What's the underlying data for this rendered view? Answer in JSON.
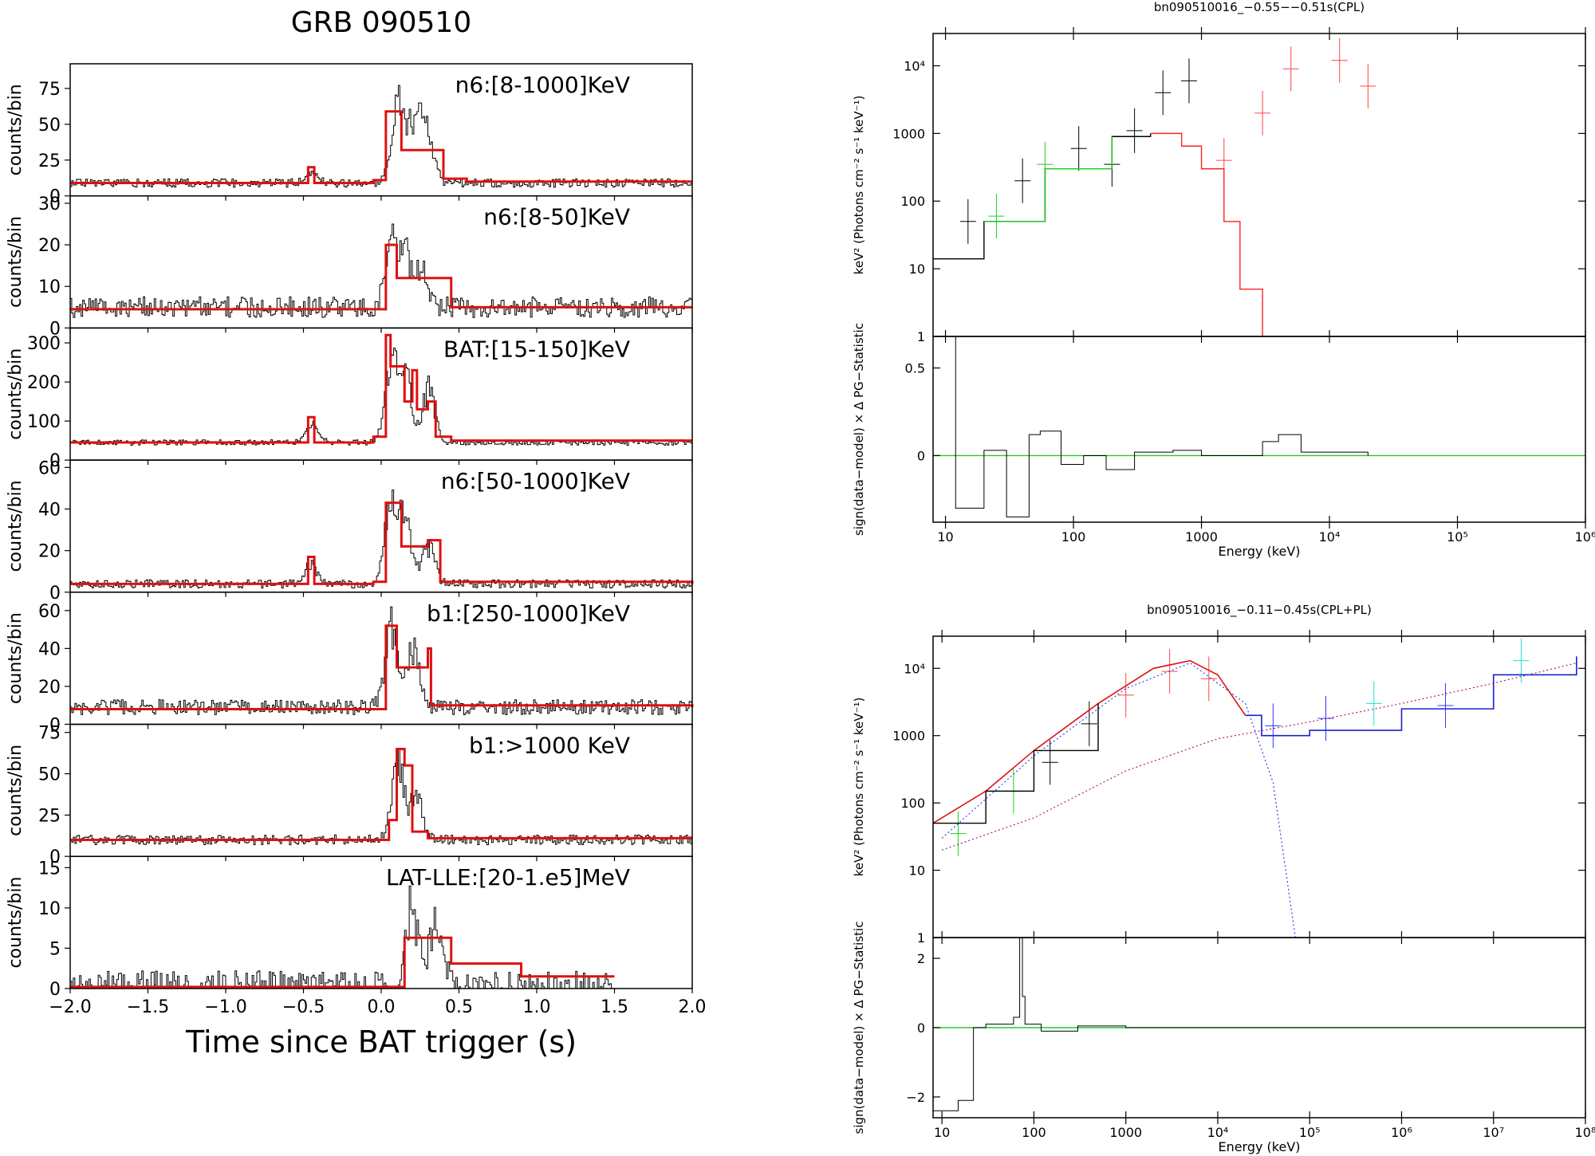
{
  "figure_title": "GRB 090510",
  "chart_data": [
    {
      "type": "line",
      "title": "GRB 090510",
      "xlabel": "Time since BAT trigger (s)",
      "ylabel": "counts/bin",
      "xlim": [
        -2.0,
        2.0
      ],
      "xticks": [
        "−2.0",
        "−1.5",
        "−1.0",
        "−0.5",
        "0.0",
        "0.5",
        "1.0",
        "1.5",
        "2.0"
      ],
      "panels": [
        {
          "label": "n6:[8-1000]KeV",
          "ylim": [
            0,
            90
          ],
          "yticks": [
            "0",
            "25",
            "50",
            "75"
          ],
          "background": 9,
          "noise": 3,
          "spikes": [
            [
              -0.45,
              20
            ],
            [
              0.1,
              80
            ],
            [
              0.2,
              52
            ],
            [
              0.25,
              45
            ],
            [
              0.3,
              40
            ]
          ],
          "model_steps": [
            [
              -2.0,
              9
            ],
            [
              -0.47,
              20
            ],
            [
              -0.43,
              9
            ],
            [
              -0.05,
              11
            ],
            [
              0.03,
              59
            ],
            [
              0.13,
              32
            ],
            [
              0.4,
              12
            ],
            [
              0.55,
              10
            ],
            [
              2.0,
              10
            ]
          ]
        },
        {
          "label": "n6:[8-50]KeV",
          "ylim": [
            0,
            31
          ],
          "yticks": [
            "0",
            "10",
            "20",
            "30"
          ],
          "background": 5,
          "noise": 2.5,
          "spikes": [
            [
              0.06,
              26
            ],
            [
              0.15,
              20
            ],
            [
              0.25,
              17
            ]
          ],
          "model_steps": [
            [
              -2.0,
              4.5
            ],
            [
              0.03,
              20
            ],
            [
              0.1,
              12
            ],
            [
              0.45,
              5
            ],
            [
              2.0,
              5
            ]
          ]
        },
        {
          "label": "BAT:[15-150]KeV",
          "ylim": [
            0,
            330
          ],
          "yticks": [
            "0",
            "100",
            "200",
            "300"
          ],
          "background": 45,
          "noise": 7,
          "spikes": [
            [
              -0.45,
              110
            ],
            [
              0.06,
              310
            ],
            [
              0.15,
              250
            ],
            [
              0.3,
              220
            ]
          ],
          "model_steps": [
            [
              -2.0,
              45
            ],
            [
              -0.47,
              110
            ],
            [
              -0.43,
              45
            ],
            [
              -0.05,
              60
            ],
            [
              0.03,
              320
            ],
            [
              0.06,
              240
            ],
            [
              0.15,
              150
            ],
            [
              0.2,
              230
            ],
            [
              0.23,
              130
            ],
            [
              0.3,
              150
            ],
            [
              0.35,
              60
            ],
            [
              0.45,
              50
            ],
            [
              2.0,
              50
            ]
          ]
        },
        {
          "label": "n6:[50-1000]KeV",
          "ylim": [
            0,
            62
          ],
          "yticks": [
            "0",
            "20",
            "40",
            "60"
          ],
          "background": 4,
          "noise": 2,
          "spikes": [
            [
              -0.45,
              18
            ],
            [
              0.06,
              55
            ],
            [
              0.15,
              42
            ],
            [
              0.3,
              28
            ]
          ],
          "model_steps": [
            [
              -2.0,
              4
            ],
            [
              -0.47,
              17
            ],
            [
              -0.43,
              4
            ],
            [
              -0.05,
              5
            ],
            [
              0.03,
              43
            ],
            [
              0.13,
              22
            ],
            [
              0.3,
              25
            ],
            [
              0.38,
              5
            ],
            [
              2.0,
              4
            ]
          ]
        },
        {
          "label": "b1:[250-1000]KeV",
          "ylim": [
            0,
            68
          ],
          "yticks": [
            "0",
            "20",
            "40",
            "60"
          ],
          "background": 9,
          "noise": 4,
          "spikes": [
            [
              0.06,
              62
            ],
            [
              0.2,
              50
            ]
          ],
          "model_steps": [
            [
              -2.0,
              8
            ],
            [
              0.03,
              52
            ],
            [
              0.1,
              30
            ],
            [
              0.3,
              40
            ],
            [
              0.32,
              10
            ],
            [
              2.0,
              9
            ]
          ]
        },
        {
          "label": "b1:>1000 KeV",
          "ylim": [
            0,
            78
          ],
          "yticks": [
            "0",
            "25",
            "50",
            "75"
          ],
          "background": 10,
          "noise": 3,
          "spikes": [
            [
              0.1,
              72
            ],
            [
              0.22,
              42
            ]
          ],
          "model_steps": [
            [
              -2.0,
              10
            ],
            [
              0.05,
              22
            ],
            [
              0.1,
              65
            ],
            [
              0.15,
              55
            ],
            [
              0.2,
              15
            ],
            [
              0.3,
              11
            ],
            [
              2.0,
              11
            ]
          ]
        },
        {
          "label": "LAT-LLE:[20-1.e5]MeV",
          "ylim": [
            0,
            16
          ],
          "yticks": [
            "0",
            "5",
            "10",
            "15"
          ],
          "background": 0.2,
          "noise": 2,
          "spikes": [
            [
              0.2,
              13
            ],
            [
              0.35,
              12
            ]
          ],
          "model_steps": [
            [
              -2.0,
              0.2
            ],
            [
              0.15,
              6.3
            ],
            [
              0.45,
              3.1
            ],
            [
              0.9,
              1.5
            ],
            [
              1.5,
              1.5
            ]
          ]
        }
      ]
    },
    {
      "type": "line",
      "title": "bn090510016_−0.55−−0.51s(CPL)",
      "xlabel": "Energy (keV)",
      "ylabel_top": "keV² (Photons cm⁻² s⁻¹ keV⁻¹)",
      "ylabel_bottom": "sign(data−model) × Δ PG−Statistic",
      "xlim": [
        8,
        1000000
      ],
      "xticks": [
        "10",
        "100",
        "1000",
        "10⁴",
        "10⁵",
        "10⁶"
      ],
      "top_ylim": [
        1,
        30000
      ],
      "top_yticks": [
        "1",
        "10",
        "100",
        "1000",
        "10⁴"
      ],
      "bottom_ylim": [
        -0.38,
        0.68
      ],
      "bottom_yticks": [
        "0",
        "0.5"
      ],
      "model": [
        [
          8,
          14
        ],
        [
          20,
          50
        ],
        [
          60,
          300
        ],
        [
          200,
          900
        ],
        [
          400,
          1000
        ],
        [
          700,
          650
        ],
        [
          1000,
          300
        ],
        [
          1500,
          50
        ],
        [
          2000,
          5
        ],
        [
          3000,
          1
        ]
      ],
      "points": [
        {
          "e": 15,
          "v": 50,
          "c": "#000000"
        },
        {
          "e": 25,
          "v": 60,
          "c": "#22cc22"
        },
        {
          "e": 40,
          "v": 200,
          "c": "#000000"
        },
        {
          "e": 60,
          "v": 350,
          "c": "#22cc22"
        },
        {
          "e": 110,
          "v": 600,
          "c": "#000000"
        },
        {
          "e": 200,
          "v": 350,
          "c": "#000000"
        },
        {
          "e": 300,
          "v": 1100,
          "c": "#000000"
        },
        {
          "e": 500,
          "v": 4000,
          "c": "#000000"
        },
        {
          "e": 800,
          "v": 6000,
          "c": "#000000"
        },
        {
          "e": 1500,
          "v": 400,
          "c": "#ff4444"
        },
        {
          "e": 3000,
          "v": 2000,
          "c": "#ff4444"
        },
        {
          "e": 5000,
          "v": 9000,
          "c": "#ff4444"
        },
        {
          "e": 12000,
          "v": 12000,
          "c": "#ff4444"
        },
        {
          "e": 20000,
          "v": 5000,
          "c": "#ff4444"
        }
      ],
      "residual_steps": [
        [
          8,
          0.68
        ],
        [
          12,
          -0.3
        ],
        [
          20,
          0.03
        ],
        [
          30,
          -0.35
        ],
        [
          45,
          0.12
        ],
        [
          55,
          0.14
        ],
        [
          80,
          -0.05
        ],
        [
          120,
          0.0
        ],
        [
          180,
          -0.08
        ],
        [
          300,
          0.02
        ],
        [
          600,
          0.03
        ],
        [
          1000,
          0.0
        ],
        [
          3000,
          0.08
        ],
        [
          4000,
          0.12
        ],
        [
          6000,
          0.02
        ],
        [
          20000,
          0.0
        ]
      ]
    },
    {
      "type": "line",
      "title": "bn090510016_−0.11−0.45s(CPL+PL)",
      "xlabel": "Energy (keV)",
      "ylabel_top": "keV² (Photons cm⁻² s⁻¹ keV⁻¹)",
      "ylabel_bottom": "sign(data−model) × Δ PG−Statistic",
      "xlim": [
        8,
        100000000
      ],
      "xticks": [
        "10",
        "100",
        "1000",
        "10⁴",
        "10⁵",
        "10⁶",
        "10⁷",
        "10⁸"
      ],
      "top_ylim": [
        1,
        30000
      ],
      "top_yticks": [
        "1",
        "10",
        "100",
        "1000",
        "10⁴"
      ],
      "bottom_ylim": [
        -2.6,
        2.6
      ],
      "bottom_yticks": [
        "−2",
        "0",
        "2"
      ],
      "model_total": [
        [
          8,
          50
        ],
        [
          30,
          150
        ],
        [
          100,
          600
        ],
        [
          500,
          3000
        ],
        [
          2000,
          10000
        ],
        [
          5000,
          13000
        ],
        [
          10000,
          8000
        ],
        [
          20000,
          2000
        ],
        [
          30000,
          1000
        ],
        [
          100000,
          1200
        ],
        [
          1000000,
          2500
        ],
        [
          10000000,
          8000
        ],
        [
          80000000,
          15000
        ]
      ],
      "model_cpl": [
        [
          10,
          30
        ],
        [
          100,
          500
        ],
        [
          1000,
          5000
        ],
        [
          5000,
          12000
        ],
        [
          20000,
          3000
        ],
        [
          40000,
          200
        ],
        [
          70000,
          1
        ]
      ],
      "model_pl": [
        [
          10,
          20
        ],
        [
          100,
          60
        ],
        [
          1000,
          300
        ],
        [
          10000,
          900
        ],
        [
          100000,
          1600
        ],
        [
          1000000,
          3000
        ],
        [
          10000000,
          6000
        ],
        [
          80000000,
          12000
        ]
      ],
      "points": [
        {
          "e": 15,
          "v": 35,
          "c": "#22cc22"
        },
        {
          "e": 60,
          "v": 150,
          "c": "#22cc22"
        },
        {
          "e": 150,
          "v": 400,
          "c": "#000000"
        },
        {
          "e": 400,
          "v": 1500,
          "c": "#000000"
        },
        {
          "e": 1000,
          "v": 4000,
          "c": "#ff4444"
        },
        {
          "e": 3000,
          "v": 9000,
          "c": "#ff4444"
        },
        {
          "e": 8000,
          "v": 7000,
          "c": "#ff4444"
        },
        {
          "e": 40000,
          "v": 1400,
          "c": "#3333ff"
        },
        {
          "e": 150000,
          "v": 1800,
          "c": "#3333ff"
        },
        {
          "e": 500000,
          "v": 3000,
          "c": "#22dddd"
        },
        {
          "e": 3000000,
          "v": 2800,
          "c": "#3333ff"
        },
        {
          "e": 20000000,
          "v": 13000,
          "c": "#22dddd"
        }
      ],
      "residual_steps": [
        [
          8,
          -2.4
        ],
        [
          15,
          -2.1
        ],
        [
          22,
          0.0
        ],
        [
          30,
          0.1
        ],
        [
          60,
          0.3
        ],
        [
          70,
          2.6
        ],
        [
          75,
          0.9
        ],
        [
          80,
          0.1
        ],
        [
          120,
          -0.1
        ],
        [
          300,
          0.05
        ],
        [
          1000,
          0.0
        ],
        [
          100000000,
          0.0
        ]
      ]
    }
  ]
}
